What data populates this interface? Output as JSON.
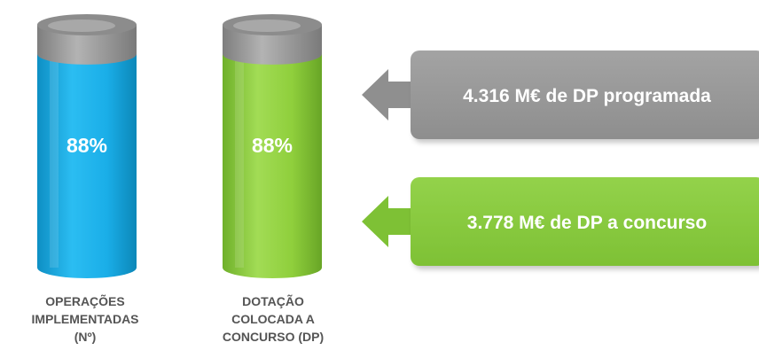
{
  "chart_data": {
    "type": "bar",
    "categories": [
      [
        "OPERAÇÕES",
        "IMPLEMENTADAS",
        "(Nº)"
      ],
      [
        "DOTAÇÃO",
        "COLOCADA A",
        "CONCURSO (DP)"
      ]
    ],
    "values": [
      88,
      88
    ],
    "data_labels": [
      "88%",
      "88%"
    ],
    "unit": "%",
    "ylim": [
      0,
      100
    ],
    "grid": false,
    "legend": "none",
    "colors": [
      "#1AAEE8",
      "#8FCF3C"
    ],
    "cap_color": "#9B9B9B"
  },
  "callouts": [
    {
      "text": "4.316 M€ de DP programada",
      "color": "#9B9B9B"
    },
    {
      "text": "3.778 M€ de DP a concurso",
      "color": "#8ACB40"
    }
  ]
}
